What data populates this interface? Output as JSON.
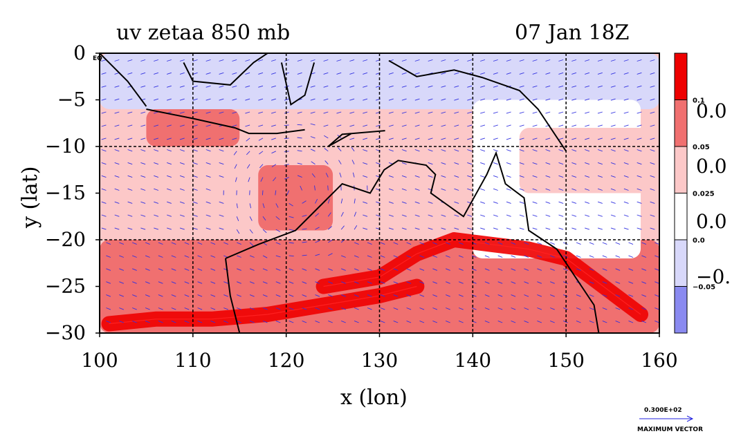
{
  "chart_data": {
    "type": "heatmap",
    "title_left": "uv zetaa 850 mb",
    "title_right": "07 Jan 18Z",
    "xlabel": "x (lon)",
    "ylabel": "y (lat)",
    "xlim": [
      100,
      160
    ],
    "ylim": [
      -30,
      0
    ],
    "x_ticks": [
      100,
      110,
      120,
      130,
      140,
      150,
      160
    ],
    "y_ticks": [
      0,
      -5,
      -10,
      -15,
      -20,
      -25,
      -30
    ],
    "x_tick_labels": [
      "100",
      "110",
      "120",
      "130",
      "140",
      "150",
      "160"
    ],
    "y_tick_labels": [
      "0",
      "−5",
      "−10",
      "−15",
      "−20",
      "−25",
      "−30"
    ],
    "equator_label": "EQ",
    "gridlines_lon": [
      110,
      120,
      130,
      140,
      150
    ],
    "gridlines_lat": [
      -10,
      -20
    ],
    "colorbar": {
      "levels": [
        -0.05,
        0.0,
        0.025,
        0.05,
        0.1
      ],
      "level_labels": [
        "−0.05",
        "0.0",
        "0.025",
        "0.05",
        "0.1"
      ],
      "large_labels": [
        "0.0",
        "0.0",
        "0.0",
        "−0."
      ],
      "colors": [
        "#8a8af0",
        "#d8d8fa",
        "#ffffff",
        "#fcc8c8",
        "#f07070",
        "#ee0000"
      ]
    },
    "vector_legend": {
      "value": "0.300E+02",
      "label": "MAXIMUM VECTOR"
    },
    "regions": [
      {
        "lon": [
          100,
          160
        ],
        "lat": [
          -6,
          0
        ],
        "level": 1
      },
      {
        "lon": [
          100,
          160
        ],
        "lat": [
          -20,
          -6
        ],
        "level": 3
      },
      {
        "lon": [
          100,
          160
        ],
        "lat": [
          -30,
          -20
        ],
        "level": 4
      },
      {
        "lon": [
          117,
          125
        ],
        "lat": [
          -19,
          -12
        ],
        "level": 4
      },
      {
        "lon": [
          140,
          158
        ],
        "lat": [
          -22,
          -5
        ],
        "level": 2
      },
      {
        "lon": [
          105,
          115
        ],
        "lat": [
          -10,
          -6
        ],
        "level": 4
      },
      {
        "lon": [
          145,
          160
        ],
        "lat": [
          -15,
          -8
        ],
        "level": 3
      }
    ],
    "bands": [
      {
        "name": "monsoon-trough",
        "lon": [
          124,
          127,
          130,
          134,
          138,
          142,
          146,
          150,
          154,
          158
        ],
        "lat": [
          -25,
          -24.5,
          -24,
          -21.5,
          -20,
          -20.5,
          -21,
          -22,
          -25,
          -28
        ],
        "level": 5
      },
      {
        "name": "shear-zone",
        "lon": [
          101,
          106,
          112,
          118,
          124,
          130,
          134
        ],
        "lat": [
          -29,
          -28.5,
          -28.5,
          -28,
          -27,
          -26,
          -25
        ],
        "level": 5
      }
    ],
    "wind_vectors": {
      "lon_spacing": 1.4,
      "lat_spacing": 1.4,
      "pattern": "cyclonic circulation near 121E 15S, westerlies 20-30S, easterlies north"
    }
  }
}
